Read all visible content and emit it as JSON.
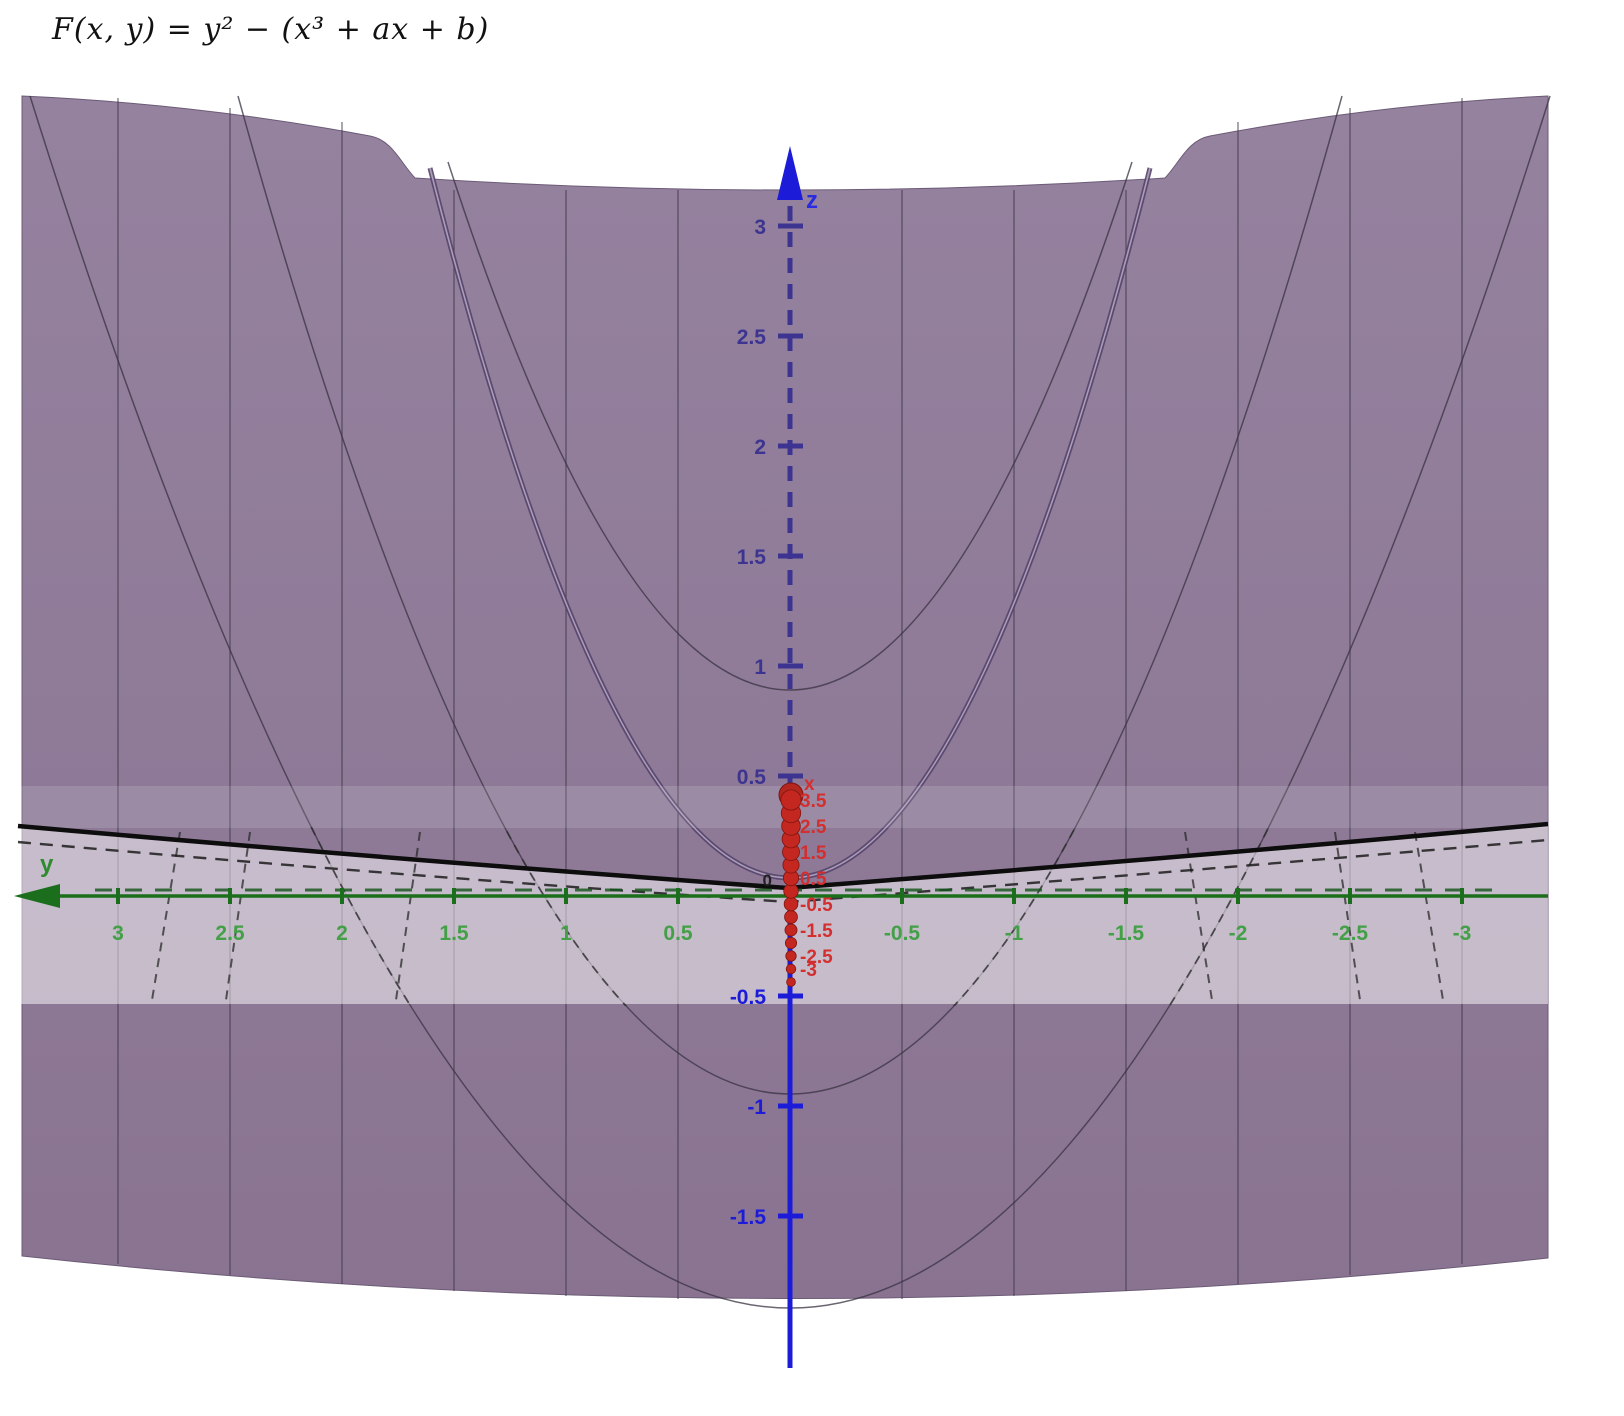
{
  "title": {
    "formula": "F(x, y) = y² − (x³ + ax + b)"
  },
  "chart_data": {
    "type": "surface",
    "title": "F(x, y) = y² − (x³ + ax + b)",
    "function": "z = y^2 - (x^3 + a*x + b)",
    "trace_level_curve": "z = 0 : y^2 = x^3 + a*x + b (elliptic curve, black curve on the translucent z=0 slab)",
    "view": "3D surface seen almost along the x-axis; x-axis points toward the viewer",
    "grid": true,
    "legend": null,
    "origin_label": "0",
    "colors": {
      "surface": "#8e7a97",
      "surface_top": "#95829f",
      "surface_bottom": "#897391",
      "mesh": "#3e3646",
      "fold": "#55446a",
      "fold_highlight": "#b5a6c1",
      "trace": "#0d0d0d",
      "band": "rgba(255,255,255,0.5)",
      "x_axis": "#d32f2f",
      "x_dot": "#c4271f",
      "y_axis": "#1b6e1b",
      "y_label": "#43a047",
      "z_axis": "#1c1cd8",
      "z_axis_hidden": "#3c3490"
    },
    "axes": {
      "x": {
        "label": "x",
        "color": "#d32f2f",
        "range": [
          -3.5,
          3.5
        ],
        "ticks": [
          {
            "value": 3.5,
            "label": "3.5"
          },
          {
            "value": 2.5,
            "label": "2.5"
          },
          {
            "value": 1.5,
            "label": "1.5"
          },
          {
            "value": 0.5,
            "label": "0.5"
          },
          {
            "value": -0.5,
            "label": "-0.5"
          },
          {
            "value": -1.5,
            "label": "-1.5"
          },
          {
            "value": -2.5,
            "label": "-2.5"
          },
          {
            "value": -3,
            "label": "-3"
          }
        ]
      },
      "y": {
        "label": "y",
        "color": "#1b6e1b",
        "range": [
          -3,
          3
        ],
        "ticks": [
          {
            "value": 3,
            "label": "3"
          },
          {
            "value": 2.5,
            "label": "2.5"
          },
          {
            "value": 2,
            "label": "2"
          },
          {
            "value": 1.5,
            "label": "1.5"
          },
          {
            "value": 1,
            "label": "1"
          },
          {
            "value": 0.5,
            "label": "0.5"
          },
          {
            "value": -0.5,
            "label": "-0.5"
          },
          {
            "value": -1,
            "label": "-1"
          },
          {
            "value": -1.5,
            "label": "-1.5"
          },
          {
            "value": -2,
            "label": "-2"
          },
          {
            "value": -2.5,
            "label": "-2.5"
          },
          {
            "value": -3,
            "label": "-3"
          }
        ]
      },
      "z": {
        "label": "z",
        "color": "#1c1cd8",
        "range": [
          -1.5,
          3
        ],
        "ticks": [
          {
            "value": 3,
            "label": "3"
          },
          {
            "value": 2.5,
            "label": "2.5"
          },
          {
            "value": 2,
            "label": "2"
          },
          {
            "value": 1.5,
            "label": "1.5"
          },
          {
            "value": 1,
            "label": "1"
          },
          {
            "value": 0.5,
            "label": "0.5"
          },
          {
            "value": -0.5,
            "label": "-0.5"
          },
          {
            "value": -1,
            "label": "-1"
          },
          {
            "value": -1.5,
            "label": "-1.5"
          }
        ]
      }
    }
  }
}
